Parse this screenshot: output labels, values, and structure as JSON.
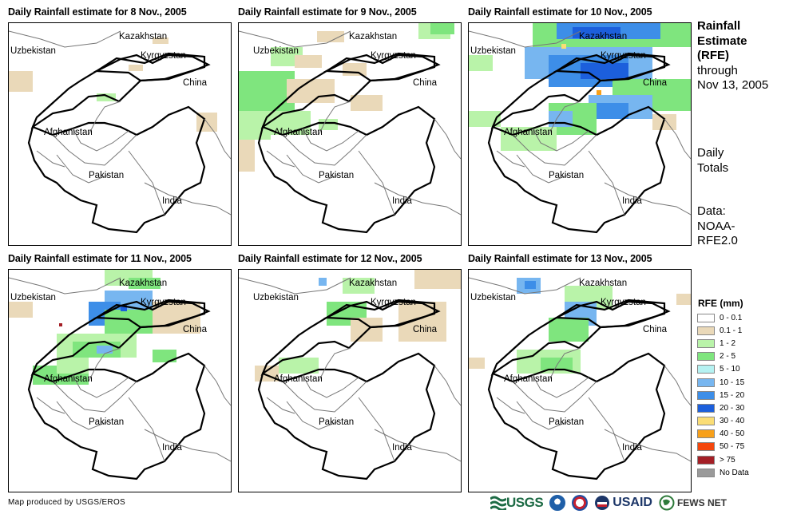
{
  "panels": [
    {
      "title": "Daily Rainfall estimate for 8 Nov., 2005",
      "date": "8 Nov., 2005"
    },
    {
      "title": "Daily Rainfall estimate for 9 Nov., 2005",
      "date": "9 Nov., 2005"
    },
    {
      "title": "Daily Rainfall estimate for 10 Nov., 2005",
      "date": "10 Nov., 2005"
    },
    {
      "title": "Daily Rainfall estimate for 11 Nov., 2005",
      "date": "11 Nov., 2005"
    },
    {
      "title": "Daily Rainfall estimate for 12 Nov., 2005",
      "date": "12 Nov., 2005"
    },
    {
      "title": "Daily Rainfall estimate for 13 Nov., 2005",
      "date": "13 Nov., 2005"
    }
  ],
  "country_labels": {
    "kazakhstan": "Kazakhstan",
    "uzbekistan": "Uzbekistan",
    "kyrgyzstan": "Kyrgyzstan",
    "china": "China",
    "afghanistan": "Afghanistan",
    "pakistan": "Pakistan",
    "india": "India"
  },
  "sidebar": {
    "title_lines": [
      "Rainfall",
      "Estimate",
      "(RFE)"
    ],
    "through_lines": [
      "through",
      "Nov 13, 2005"
    ],
    "period_lines": [
      "Daily",
      "Totals"
    ],
    "data_lines": [
      "Data:",
      "NOAA-",
      "RFE2.0"
    ]
  },
  "legend": {
    "title": "RFE (mm)",
    "items": [
      {
        "label": "0 - 0.1",
        "color": "#ffffff"
      },
      {
        "label": "0.1 - 1",
        "color": "#ead9b9"
      },
      {
        "label": "1 - 2",
        "color": "#b9f3a9"
      },
      {
        "label": "2 - 5",
        "color": "#7fe57e"
      },
      {
        "label": "5 - 10",
        "color": "#b5f2f2"
      },
      {
        "label": "10 - 15",
        "color": "#77b6f0"
      },
      {
        "label": "15 - 20",
        "color": "#3d8ee8"
      },
      {
        "label": "20 - 30",
        "color": "#1c5fdc"
      },
      {
        "label": "30 - 40",
        "color": "#fadd76"
      },
      {
        "label": "40 - 50",
        "color": "#f7a01a"
      },
      {
        "label": "50 - 75",
        "color": "#f4470d"
      },
      {
        "label": "> 75",
        "color": "#a41f26"
      },
      {
        "label": "No Data",
        "color": "#9a9a9a"
      }
    ]
  },
  "footer": {
    "credit": "Map produced by USGS/EROS",
    "logos": {
      "usgs": "USGS",
      "usaid": "USAID",
      "fews": "FEWS NET"
    }
  }
}
